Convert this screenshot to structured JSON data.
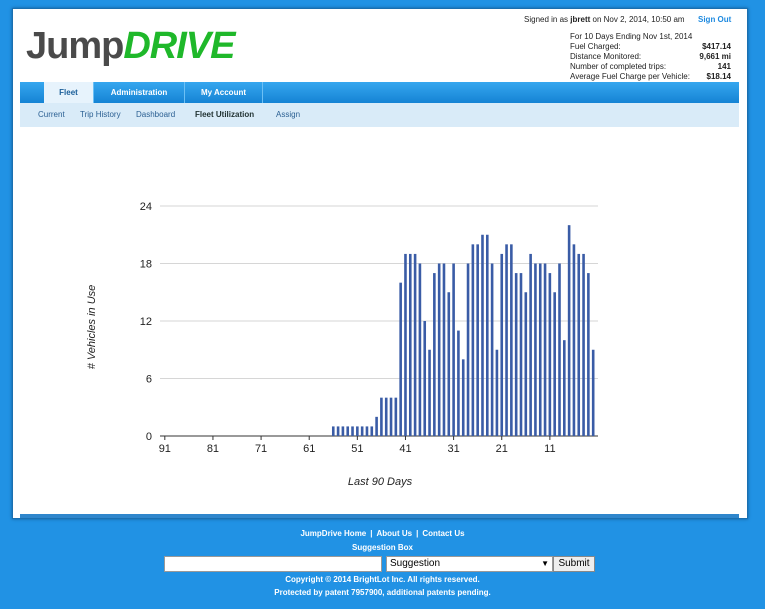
{
  "header": {
    "logo_part1": "Jump",
    "logo_part2": "DRIVE",
    "signed_in_prefix": "Signed in as",
    "user": "jbrett",
    "signed_in_suffix": "on Nov 2, 2014, 10:50 am",
    "sign_out": "Sign Out"
  },
  "summary": {
    "title": "For 10 Days Ending Nov 1st, 2014",
    "rows": [
      [
        "Fuel Charged:",
        "$417.14"
      ],
      [
        "Distance Monitored:",
        "9,661 mi"
      ],
      [
        "Number of completed trips:",
        "141"
      ],
      [
        "Average Fuel Charge per Vehicle:",
        "$18.14"
      ]
    ]
  },
  "nav": {
    "tabs": [
      "Fleet",
      "Administration",
      "My Account"
    ],
    "active_tab": 0,
    "subtabs": [
      "Current",
      "Trip History",
      "Dashboard",
      "Fleet Utilization",
      "Assign"
    ],
    "active_subtab": 3
  },
  "chart_data": {
    "type": "bar",
    "xlabel": "Last 90 Days",
    "ylabel": "# Vehicles in Use",
    "color": "#3a5ca6",
    "grid": true,
    "x": [
      91,
      90,
      89,
      88,
      87,
      86,
      85,
      84,
      83,
      82,
      81,
      80,
      79,
      78,
      77,
      76,
      75,
      74,
      73,
      72,
      71,
      70,
      69,
      68,
      67,
      66,
      65,
      64,
      63,
      62,
      61,
      60,
      59,
      58,
      57,
      56,
      55,
      54,
      53,
      52,
      51,
      50,
      49,
      48,
      47,
      46,
      45,
      44,
      43,
      42,
      41,
      40,
      39,
      38,
      37,
      36,
      35,
      34,
      33,
      32,
      31,
      30,
      29,
      28,
      27,
      26,
      25,
      24,
      23,
      22,
      21,
      20,
      19,
      18,
      17,
      16,
      15,
      14,
      13,
      12,
      11,
      10,
      9,
      8,
      7,
      6,
      5,
      4,
      3,
      2
    ],
    "values": [
      0,
      0,
      0,
      0,
      0,
      0,
      0,
      0,
      0,
      0,
      0,
      0,
      0,
      0,
      0,
      0,
      0,
      0,
      0,
      0,
      0,
      0,
      0,
      0,
      0,
      0,
      0,
      0,
      0,
      0,
      0,
      0,
      0,
      0,
      0,
      1,
      1,
      1,
      1,
      1,
      1,
      1,
      1,
      1,
      2,
      4,
      4,
      4,
      4,
      16,
      19,
      19,
      19,
      18,
      12,
      9,
      17,
      18,
      18,
      15,
      18,
      11,
      8,
      18,
      20,
      20,
      21,
      21,
      18,
      9,
      19,
      20,
      20,
      17,
      17,
      15,
      19,
      18,
      18,
      18,
      17,
      15,
      18,
      10,
      22,
      20,
      19,
      19,
      17,
      9
    ],
    "xlim": [
      92,
      1
    ],
    "xticks": [
      91,
      81,
      71,
      61,
      51,
      41,
      31,
      21,
      11
    ],
    "ylim": [
      0,
      24
    ],
    "yticks": [
      0,
      6,
      12,
      18,
      24
    ]
  },
  "footer": {
    "links": [
      "JumpDrive Home",
      "About Us",
      "Contact Us"
    ],
    "separator": "|",
    "suggestion_box": "Suggestion Box",
    "select_option": "Suggestion",
    "submit": "Submit",
    "copyright": "Copyright © 2014 BrightLot Inc.  All rights reserved.",
    "patent": "Protected by patent 7957900, additional patents pending."
  }
}
